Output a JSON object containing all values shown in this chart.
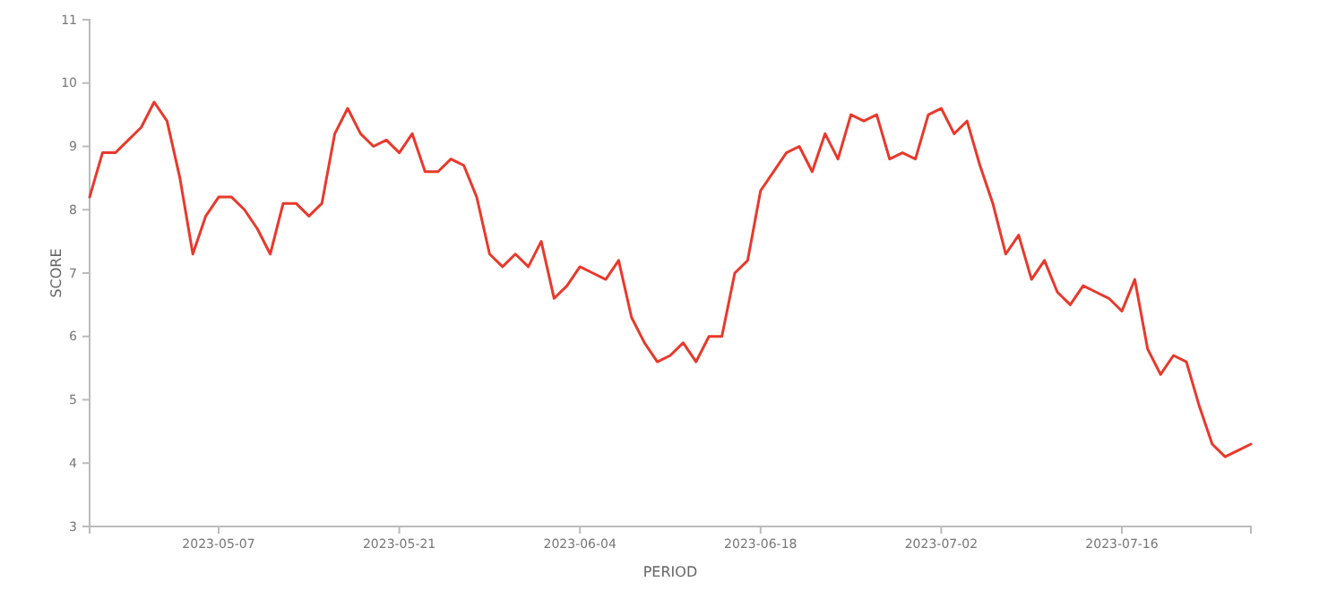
{
  "chart_data": {
    "type": "line",
    "xlabel": "PERIOD",
    "ylabel": "SCORE",
    "x": [
      "2023-04-27",
      "2023-04-28",
      "2023-04-29",
      "2023-04-30",
      "2023-05-01",
      "2023-05-02",
      "2023-05-03",
      "2023-05-04",
      "2023-05-05",
      "2023-05-06",
      "2023-05-07",
      "2023-05-08",
      "2023-05-09",
      "2023-05-10",
      "2023-05-11",
      "2023-05-12",
      "2023-05-13",
      "2023-05-14",
      "2023-05-15",
      "2023-05-16",
      "2023-05-17",
      "2023-05-18",
      "2023-05-19",
      "2023-05-20",
      "2023-05-21",
      "2023-05-22",
      "2023-05-23",
      "2023-05-24",
      "2023-05-25",
      "2023-05-26",
      "2023-05-27",
      "2023-05-28",
      "2023-05-29",
      "2023-05-30",
      "2023-05-31",
      "2023-06-01",
      "2023-06-02",
      "2023-06-03",
      "2023-06-04",
      "2023-06-05",
      "2023-06-06",
      "2023-06-07",
      "2023-06-08",
      "2023-06-09",
      "2023-06-10",
      "2023-06-11",
      "2023-06-12",
      "2023-06-13",
      "2023-06-14",
      "2023-06-15",
      "2023-06-16",
      "2023-06-17",
      "2023-06-18",
      "2023-06-19",
      "2023-06-20",
      "2023-06-21",
      "2023-06-22",
      "2023-06-23",
      "2023-06-24",
      "2023-06-25",
      "2023-06-26",
      "2023-06-27",
      "2023-06-28",
      "2023-06-29",
      "2023-06-30",
      "2023-07-01",
      "2023-07-02",
      "2023-07-03",
      "2023-07-04",
      "2023-07-05",
      "2023-07-06",
      "2023-07-07",
      "2023-07-08",
      "2023-07-09",
      "2023-07-10",
      "2023-07-11",
      "2023-07-12",
      "2023-07-13",
      "2023-07-14",
      "2023-07-15",
      "2023-07-16",
      "2023-07-17",
      "2023-07-18",
      "2023-07-19",
      "2023-07-20",
      "2023-07-21",
      "2023-07-22",
      "2023-07-23",
      "2023-07-24",
      "2023-07-25",
      "2023-07-26"
    ],
    "series": [
      {
        "color": "#e8392b",
        "values": [
          8.2,
          8.9,
          8.9,
          9.1,
          9.3,
          9.7,
          9.4,
          8.5,
          7.3,
          7.9,
          8.2,
          8.2,
          8.0,
          7.7,
          7.3,
          8.1,
          8.1,
          7.9,
          8.1,
          9.2,
          9.6,
          9.2,
          9.0,
          9.1,
          8.9,
          9.2,
          8.6,
          8.6,
          8.8,
          8.7,
          8.2,
          7.3,
          7.1,
          7.3,
          7.1,
          7.5,
          6.6,
          6.8,
          7.1,
          7.0,
          6.9,
          7.2,
          6.3,
          5.9,
          5.6,
          5.7,
          5.9,
          5.6,
          6.0,
          6.0,
          7.0,
          7.2,
          8.3,
          8.6,
          8.9,
          9.0,
          8.6,
          9.2,
          8.8,
          9.5,
          9.4,
          9.5,
          8.8,
          8.9,
          8.8,
          9.5,
          9.6,
          9.2,
          9.4,
          8.7,
          8.1,
          7.3,
          7.6,
          6.9,
          7.2,
          6.7,
          6.5,
          6.8,
          6.7,
          6.6,
          6.4,
          6.9,
          5.8,
          5.4,
          5.7,
          5.6,
          4.9,
          4.3,
          4.1,
          4.2,
          4.3
        ]
      }
    ],
    "xlim": [
      "2023-04-27",
      "2023-07-26"
    ],
    "xticks": [
      "2023-05-07",
      "2023-05-21",
      "2023-06-04",
      "2023-06-18",
      "2023-07-02",
      "2023-07-16"
    ],
    "ylim": [
      3,
      11
    ],
    "yticks": [
      3,
      4,
      5,
      6,
      7,
      8,
      9,
      10,
      11
    ],
    "grid": false,
    "marker": "none",
    "line_style": "solid"
  }
}
